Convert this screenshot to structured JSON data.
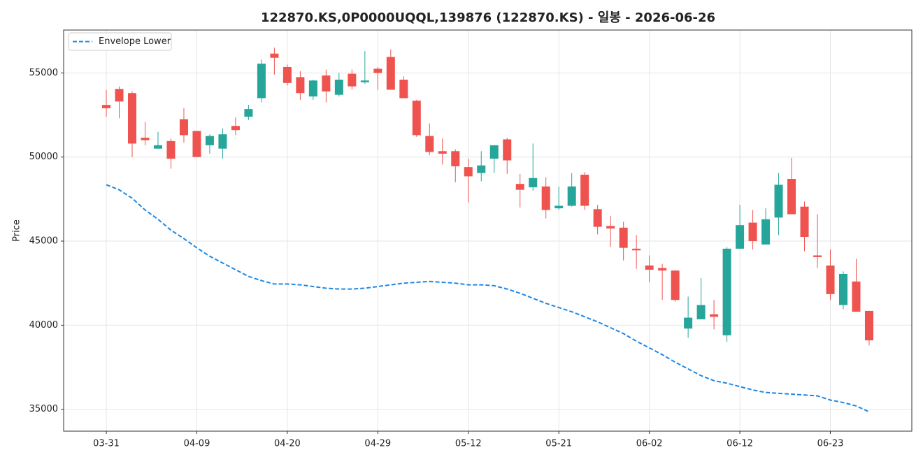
{
  "chart_data": {
    "type": "candlestick",
    "title": "122870.KS,0P0000UQQL,139876 (122870.KS) - 일봉 - 2026-06-26",
    "ylabel": "Price",
    "categories": [
      "03-31",
      null,
      null,
      null,
      null,
      null,
      null,
      "04-09",
      null,
      null,
      null,
      null,
      null,
      null,
      "04-20",
      null,
      null,
      null,
      null,
      null,
      null,
      "04-29",
      null,
      null,
      null,
      null,
      null,
      null,
      "05-12",
      null,
      null,
      null,
      null,
      null,
      null,
      "05-21",
      null,
      null,
      null,
      null,
      null,
      null,
      "06-02",
      null,
      null,
      null,
      null,
      null,
      null,
      "06-12",
      null,
      null,
      null,
      null,
      null,
      null,
      "06-23",
      null,
      null,
      null
    ],
    "open": [
      53100,
      54050,
      53800,
      51150,
      50500,
      50950,
      52250,
      51550,
      50700,
      50500,
      51850,
      52400,
      53500,
      56150,
      55350,
      54750,
      53600,
      54850,
      53700,
      54950,
      54450,
      55250,
      55950,
      54600,
      53350,
      51250,
      50350,
      50350,
      49400,
      49050,
      49900,
      51050,
      48400,
      48200,
      48250,
      46950,
      47100,
      48950,
      46900,
      45900,
      45800,
      44550,
      43550,
      43400,
      43250,
      39800,
      40350,
      40650,
      39400,
      44550,
      46100,
      44800,
      46400,
      48700,
      47050,
      44150,
      43550,
      41200,
      42600,
      40850
    ],
    "high": [
      54000,
      54200,
      53900,
      52100,
      51500,
      51100,
      52900,
      51550,
      51350,
      51700,
      52350,
      53100,
      55800,
      56500,
      55500,
      55100,
      54600,
      55200,
      55000,
      55200,
      56300,
      55350,
      56400,
      54800,
      53400,
      52000,
      51100,
      50450,
      49900,
      50350,
      50700,
      51150,
      49000,
      50800,
      48800,
      48250,
      49050,
      49100,
      47150,
      46500,
      46150,
      45350,
      44150,
      43650,
      43250,
      41700,
      42800,
      41500,
      44650,
      47150,
      46850,
      46950,
      49050,
      49950,
      47350,
      46600,
      44500,
      43200,
      43950,
      40850
    ],
    "low": [
      52400,
      52300,
      50000,
      50700,
      50500,
      49300,
      50850,
      50000,
      50200,
      49900,
      51300,
      52200,
      53250,
      54900,
      54250,
      53400,
      53400,
      53250,
      53600,
      54000,
      54350,
      54000,
      54000,
      53500,
      51200,
      50100,
      49550,
      48500,
      47300,
      48550,
      49050,
      49000,
      47000,
      48000,
      46350,
      46850,
      47050,
      46850,
      45400,
      44650,
      43850,
      43350,
      42550,
      41500,
      41400,
      39250,
      40350,
      39750,
      39000,
      44550,
      44500,
      44800,
      45350,
      46600,
      44400,
      43400,
      41500,
      40950,
      40800,
      38800
    ],
    "close": [
      52900,
      53300,
      50800,
      51000,
      50700,
      49900,
      51300,
      50000,
      51250,
      51350,
      51600,
      52850,
      55550,
      55900,
      54400,
      53800,
      54550,
      53900,
      54600,
      54200,
      54550,
      55000,
      54000,
      53500,
      51300,
      50300,
      50200,
      49450,
      48850,
      49500,
      50700,
      49800,
      48050,
      48750,
      46850,
      47100,
      48250,
      47100,
      45850,
      45750,
      44600,
      44450,
      43300,
      43250,
      41500,
      40450,
      41200,
      40500,
      44550,
      45950,
      45000,
      46300,
      48350,
      46600,
      45250,
      44050,
      41850,
      43050,
      40800,
      39100
    ],
    "up_color": "#26a69a",
    "down_color": "#ef5350",
    "lines": [
      {
        "name": "Envelope Lower",
        "color": "#1e88e5",
        "dashed": true,
        "values": [
          48350,
          48050,
          47550,
          46850,
          46300,
          45650,
          45150,
          44600,
          44100,
          43700,
          43300,
          42900,
          42650,
          42450,
          42450,
          42400,
          42300,
          42200,
          42150,
          42150,
          42200,
          42300,
          42400,
          42500,
          42550,
          42600,
          42550,
          42500,
          42400,
          42400,
          42350,
          42150,
          41900,
          41600,
          41300,
          41050,
          40800,
          40500,
          40200,
          39850,
          39500,
          39050,
          38650,
          38250,
          37800,
          37400,
          37000,
          36700,
          36550,
          36350,
          36150,
          36000,
          35950,
          35900,
          35850,
          35800,
          35550,
          35400,
          35200,
          34850
        ]
      }
    ],
    "ylim": [
      33700,
      57550
    ],
    "yticks": [
      35000,
      40000,
      45000,
      50000,
      55000
    ],
    "grid": true,
    "legend": "upper left"
  }
}
